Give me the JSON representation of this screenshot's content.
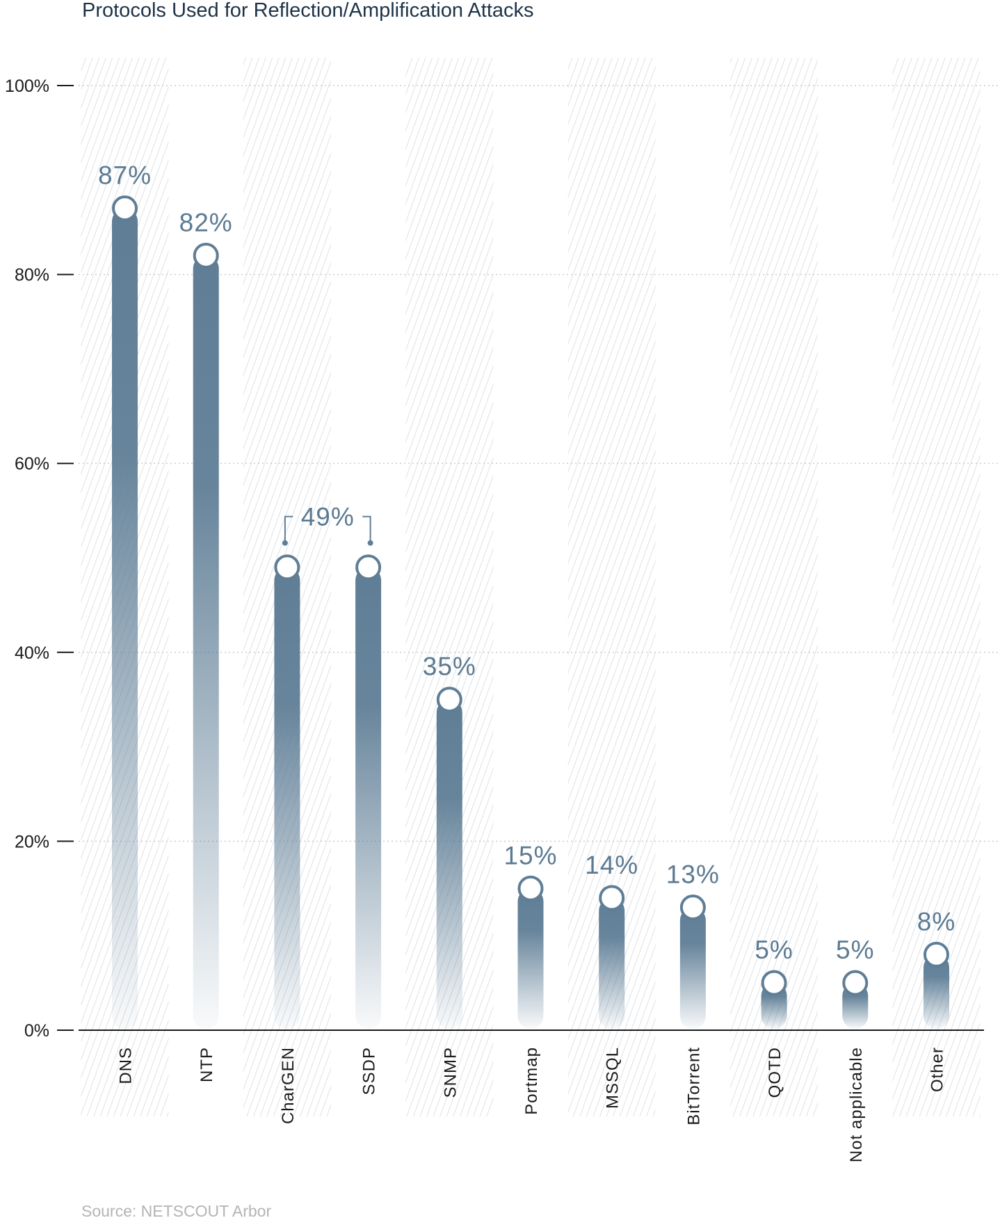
{
  "colors": {
    "bar": "#5f7e96",
    "value_label": "#5b7a92",
    "title": "#1e3347",
    "axis": "#1a1a1a",
    "grid": "#cccccc",
    "hatch": "#d9dde1",
    "source": "#b4b4b4"
  },
  "chart_data": {
    "type": "bar",
    "title": "Protocols Used for Reflection/Amplification Attacks",
    "source": "Source: NETSCOUT Arbor",
    "categories": [
      "DNS",
      "NTP",
      "CharGEN",
      "SSDP",
      "SNMP",
      "Portmap",
      "MSSQL",
      "BitTorrent",
      "QOTD",
      "Not applicable",
      "Other"
    ],
    "values": [
      87,
      82,
      49,
      49,
      35,
      15,
      14,
      13,
      5,
      5,
      8
    ],
    "value_labels": [
      "87%",
      "82%",
      "49%",
      "",
      "35%",
      "15%",
      "14%",
      "13%",
      "5%",
      "5%",
      "8%"
    ],
    "shared_label_note": "49% bracket spans CharGEN and SSDP",
    "y_ticks": [
      "0%",
      "20%",
      "40%",
      "60%",
      "80%",
      "100%"
    ],
    "y_tick_values": [
      0,
      20,
      40,
      60,
      80,
      100
    ],
    "ylim": [
      0,
      100
    ],
    "xlabel": "",
    "ylabel": "",
    "grid": true,
    "legend": "none"
  }
}
